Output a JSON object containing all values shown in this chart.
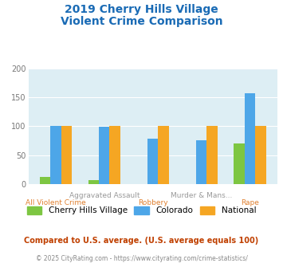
{
  "title_line1": "2019 Cherry Hills Village",
  "title_line2": "Violent Crime Comparison",
  "categories": [
    "All Violent Crime",
    "Aggravated Assault",
    "Robbery",
    "Murder & Mans...",
    "Rape"
  ],
  "cherry_hills": [
    13,
    7,
    0,
    0,
    70
  ],
  "colorado": [
    101,
    99,
    79,
    76,
    157
  ],
  "national": [
    100,
    100,
    100,
    100,
    100
  ],
  "color_cherry": "#7dc642",
  "color_colorado": "#4da6e8",
  "color_national": "#f5a623",
  "bg_color": "#ddeef4",
  "ylim": [
    0,
    200
  ],
  "yticks": [
    0,
    50,
    100,
    150,
    200
  ],
  "legend_labels": [
    "Cherry Hills Village",
    "Colorado",
    "National"
  ],
  "footnote1": "Compared to U.S. average. (U.S. average equals 100)",
  "footnote2": "© 2025 CityRating.com - https://www.cityrating.com/crime-statistics/",
  "title_color": "#1a6bb5",
  "footnote1_color": "#c04000",
  "footnote2_color": "#888888",
  "xtick_top_color": "#999999",
  "xtick_bot_color": "#e08030"
}
